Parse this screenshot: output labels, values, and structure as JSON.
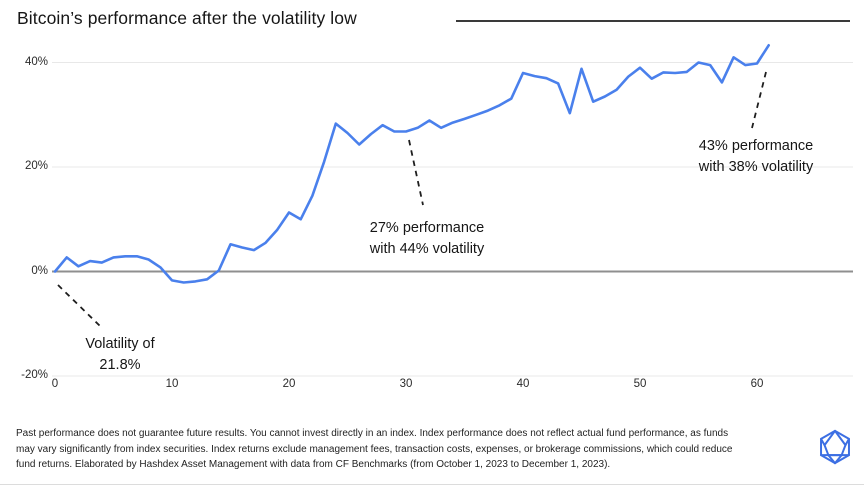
{
  "title": "Bitcoin’s performance after the volatility low",
  "chart_data": {
    "type": "line",
    "title": "Bitcoin’s performance after the volatility low",
    "xlabel": "",
    "ylabel": "",
    "x_start": 0,
    "x_step": 1,
    "x": [
      0,
      1,
      2,
      3,
      4,
      5,
      6,
      7,
      8,
      9,
      10,
      11,
      12,
      13,
      14,
      15,
      16,
      17,
      18,
      19,
      20,
      21,
      22,
      23,
      24,
      25,
      26,
      27,
      28,
      29,
      30,
      31,
      32,
      33,
      34,
      35,
      36,
      37,
      38,
      39,
      40,
      41,
      42,
      43,
      44,
      45,
      46,
      47,
      48,
      49,
      50,
      51,
      52,
      53,
      54,
      55,
      56,
      57,
      58,
      59,
      60,
      61
    ],
    "values": [
      0,
      2.7,
      1.0,
      2.0,
      1.7,
      2.7,
      2.9,
      2.9,
      2.3,
      0.8,
      -1.7,
      -2.1,
      -1.9,
      -1.5,
      0.2,
      5.2,
      4.6,
      4.1,
      5.5,
      8.0,
      11.3,
      10.0,
      14.5,
      21.0,
      28.3,
      26.5,
      24.3,
      26.3,
      28.0,
      26.8,
      26.8,
      27.5,
      28.9,
      27.5,
      28.5,
      29.2,
      30.0,
      30.8,
      31.8,
      33.1,
      38.0,
      37.4,
      37.0,
      36.0,
      30.3,
      38.8,
      32.5,
      33.5,
      34.8,
      37.3,
      39.0,
      36.9,
      38.1,
      38.0,
      38.2,
      40.0,
      39.5,
      36.2,
      41.0,
      39.5,
      39.8,
      43.3
    ],
    "xticks": [
      0,
      10,
      20,
      30,
      40,
      50,
      60
    ],
    "yticks": [
      {
        "value": 40,
        "label": "40%"
      },
      {
        "value": 20,
        "label": "20%"
      },
      {
        "value": 0,
        "label": "0%"
      },
      {
        "value": -20,
        "label": "-20%"
      }
    ],
    "ylim": [
      -20,
      45
    ],
    "xlim": [
      0,
      61
    ],
    "grid": true,
    "legend": "none",
    "line_color": "#4A80EC",
    "zero_axis_color": "#8f8f8f",
    "gridline_color": "#e8e8e8"
  },
  "annotations": [
    {
      "line1": "Volatility of",
      "line2": "21.8%"
    },
    {
      "line1": "27% performance",
      "line2": "with 44% volatility"
    },
    {
      "line1": "43% performance",
      "line2": "with 38% volatility"
    }
  ],
  "footer": {
    "lines": [
      "Past performance does not guarantee future results. You cannot invest directly in an index. Index performance does not reflect actual fund performance, as funds",
      "may vary significantly from index securities. Index returns exclude management fees, transaction costs, expenses, or brokerage commissions, which could reduce",
      "fund returns. Elaborated by Hashdex Asset Management with data from CF Benchmarks (from October 1, 2023 to December 1, 2023)."
    ]
  },
  "logo": {
    "name": "hashdex-polyhedron-logo",
    "color": "#3C6FE3"
  },
  "colors": {
    "title_text": "#161616",
    "annotation_text": "#161616",
    "tick_text": "#2b2b2b",
    "dashed_connector": "#1e1e1e"
  }
}
